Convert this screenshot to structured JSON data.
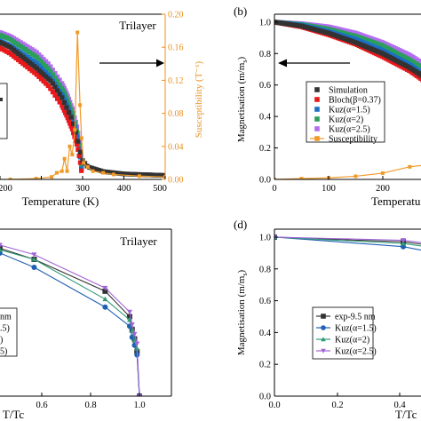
{
  "colors": {
    "simulation": "#333333",
    "bloch": "#e8181b",
    "kuz15": "#1c6fc7",
    "kuz2": "#2aa05a",
    "kuz25": "#b36ef0",
    "susc": "#f09a2a",
    "exp": "#333333",
    "kuz15_d": "#1f5fb4",
    "kuz2_d": "#2e9b74",
    "kuz25_d": "#a264d8"
  },
  "chart_data": [
    {
      "panel": "a",
      "type": "scatter",
      "annotation": "Trilayer",
      "xlabel": "Temperature (K)",
      "ylabel_right": "Susceptibility (T⁻¹)",
      "x_ticks": [
        "200",
        "300",
        "400",
        "500"
      ],
      "right_ticks": [
        "0.00",
        "0.04",
        "0.08",
        "0.12",
        "0.16",
        "0.20"
      ],
      "xlim": [
        100,
        500
      ],
      "ylim": [
        0,
        1.05
      ],
      "y2lim": [
        0,
        0.2
      ],
      "series": [
        {
          "key": "kuz25",
          "x": [
            100,
            150,
            200,
            250,
            275,
            300,
            310,
            320,
            330,
            335,
            338
          ],
          "y": [
            1.0,
            0.97,
            0.91,
            0.81,
            0.73,
            0.61,
            0.54,
            0.45,
            0.32,
            0.2,
            0.08
          ]
        },
        {
          "key": "kuz2",
          "x": [
            100,
            150,
            200,
            250,
            275,
            300,
            310,
            320,
            330,
            335,
            338
          ],
          "y": [
            1.0,
            0.96,
            0.89,
            0.78,
            0.7,
            0.58,
            0.51,
            0.42,
            0.29,
            0.18,
            0.07
          ]
        },
        {
          "key": "kuz15",
          "x": [
            100,
            150,
            200,
            250,
            275,
            300,
            310,
            320,
            330,
            335,
            338
          ],
          "y": [
            0.98,
            0.93,
            0.85,
            0.74,
            0.66,
            0.54,
            0.47,
            0.38,
            0.26,
            0.16,
            0.06
          ]
        },
        {
          "key": "bloch",
          "x": [
            100,
            150,
            200,
            250,
            275,
            300,
            310,
            320,
            330,
            335,
            338
          ],
          "y": [
            0.96,
            0.89,
            0.8,
            0.67,
            0.59,
            0.47,
            0.4,
            0.32,
            0.21,
            0.12,
            0.05
          ]
        },
        {
          "key": "simulation",
          "x": [
            100,
            150,
            200,
            250,
            280,
            300,
            320,
            330,
            335,
            340,
            350,
            380,
            420,
            460,
            500
          ],
          "y": [
            0.97,
            0.92,
            0.84,
            0.71,
            0.62,
            0.52,
            0.38,
            0.26,
            0.18,
            0.12,
            0.08,
            0.05,
            0.035,
            0.03,
            0.025
          ]
        },
        {
          "key": "susc",
          "axis": "right",
          "x": [
            100,
            150,
            200,
            250,
            280,
            290,
            300,
            305,
            310,
            315,
            320,
            325,
            330,
            335,
            338,
            342,
            350,
            360,
            380,
            400,
            450,
            500
          ],
          "y": [
            0.0,
            0.0,
            0.0,
            0.001,
            0.003,
            0.008,
            0.01,
            0.025,
            0.01,
            0.04,
            0.03,
            0.06,
            0.178,
            0.09,
            0.05,
            0.02,
            0.015,
            0.01,
            0.008,
            0.006,
            0.004,
            0.003
          ]
        }
      ]
    },
    {
      "panel": "b",
      "type": "scatter",
      "label": "(b)",
      "xlabel": "Temperatu",
      "ylabel": "Magnetisation (m/m",
      "ylabel_sub": "s",
      "ylabel_end": ")",
      "x_ticks": [
        "0",
        "100",
        "200"
      ],
      "y_ticks": [
        "0.0",
        "0.2",
        "0.4",
        "0.6",
        "0.8",
        "1.0"
      ],
      "xlim": [
        0,
        320
      ],
      "ylim": [
        0,
        1.05
      ],
      "legend": {
        "position": "right",
        "entries": [
          {
            "key": "simulation",
            "label": "Simulation"
          },
          {
            "key": "bloch",
            "label": "Bloch(β=0.37)"
          },
          {
            "key": "kuz15",
            "label": "Kuz(α=1.5)"
          },
          {
            "key": "kuz2",
            "label": "Kuz(α=2)"
          },
          {
            "key": "kuz25",
            "label": "Kuz(α=2.5)"
          },
          {
            "key": "susc",
            "label": "Susceptibility"
          }
        ]
      },
      "series": [
        {
          "key": "kuz25",
          "x": [
            0,
            50,
            100,
            150,
            200,
            250,
            300,
            320
          ],
          "y": [
            1.0,
            0.99,
            0.97,
            0.93,
            0.87,
            0.79,
            0.68,
            0.62
          ]
        },
        {
          "key": "kuz2",
          "x": [
            0,
            50,
            100,
            150,
            200,
            250,
            300,
            320
          ],
          "y": [
            1.0,
            0.985,
            0.955,
            0.91,
            0.85,
            0.76,
            0.65,
            0.59
          ]
        },
        {
          "key": "kuz15",
          "x": [
            0,
            50,
            100,
            150,
            200,
            250,
            300,
            320
          ],
          "y": [
            1.0,
            0.98,
            0.94,
            0.89,
            0.82,
            0.73,
            0.61,
            0.55
          ]
        },
        {
          "key": "bloch",
          "x": [
            0,
            50,
            100,
            150,
            200,
            250,
            300,
            320
          ],
          "y": [
            1.0,
            0.97,
            0.92,
            0.86,
            0.78,
            0.69,
            0.57,
            0.51
          ]
        },
        {
          "key": "simulation",
          "x": [
            0,
            50,
            100,
            150,
            200,
            250,
            300,
            320
          ],
          "y": [
            1.0,
            0.975,
            0.93,
            0.87,
            0.8,
            0.71,
            0.6,
            0.53
          ]
        },
        {
          "key": "susc",
          "x": [
            0,
            50,
            100,
            150,
            200,
            250,
            275,
            300,
            320
          ],
          "y": [
            0.0,
            0.005,
            0.01,
            0.02,
            0.04,
            0.08,
            0.09,
            0.075,
            0.085
          ]
        }
      ]
    },
    {
      "panel": "c",
      "type": "line",
      "annotation": "Trilayer",
      "xlabel": "T/Tc",
      "x_ticks": [
        "0.6",
        "0.8",
        "1.0"
      ],
      "xlim": [
        0.3,
        1.0
      ],
      "ylim": [
        0,
        1.05
      ],
      "legend": {
        "position": "left",
        "entries": [
          {
            "key": "exp",
            "label": "nm"
          },
          {
            "key": "kuz15_d",
            "label": ".5)"
          },
          {
            "key": "kuz2_d",
            "label": ")"
          },
          {
            "key": "kuz25_d",
            "label": "5)"
          }
        ]
      },
      "series": [
        {
          "key": "exp",
          "x": [
            0.3,
            0.43,
            0.57,
            0.86,
            0.96,
            0.97,
            0.98,
            0.99,
            1.0
          ],
          "y": [
            0.98,
            0.93,
            0.86,
            0.66,
            0.5,
            0.42,
            0.36,
            0.28,
            0.0
          ]
        },
        {
          "key": "kuz15_d",
          "x": [
            0.3,
            0.43,
            0.57,
            0.86,
            0.96,
            0.97,
            0.98,
            0.99,
            1.0
          ],
          "y": [
            0.97,
            0.9,
            0.81,
            0.56,
            0.44,
            0.37,
            0.32,
            0.26,
            0.0
          ]
        },
        {
          "key": "kuz2_d",
          "x": [
            0.3,
            0.43,
            0.57,
            0.86,
            0.96,
            0.97,
            0.98,
            0.99,
            1.0
          ],
          "y": [
            0.98,
            0.92,
            0.86,
            0.61,
            0.48,
            0.41,
            0.35,
            0.3,
            0.0
          ]
        },
        {
          "key": "kuz25_d",
          "x": [
            0.3,
            0.43,
            0.57,
            0.86,
            0.96,
            0.97,
            0.98,
            0.99,
            1.0
          ],
          "y": [
            0.99,
            0.95,
            0.89,
            0.68,
            0.53,
            0.45,
            0.39,
            0.33,
            0.0
          ]
        }
      ]
    },
    {
      "panel": "d",
      "type": "line",
      "label": "(d)",
      "xlabel": "T/Tc",
      "ylabel": "Magnetisation (m/m",
      "ylabel_sub": "s",
      "ylabel_end": ")",
      "x_ticks": [
        "0.0",
        "0.2",
        "0.4"
      ],
      "y_ticks": [
        "0.0",
        "0.2",
        "0.4",
        "0.6",
        "0.8",
        "1.0"
      ],
      "xlim": [
        0,
        0.47
      ],
      "ylim": [
        0,
        1.05
      ],
      "legend": {
        "position": "left",
        "entries": [
          {
            "key": "exp",
            "label": "exp-9.5 nm"
          },
          {
            "key": "kuz15_d",
            "label": "Kuz(α=1.5)"
          },
          {
            "key": "kuz2_d",
            "label": "Kuz(α=2)"
          },
          {
            "key": "kuz25_d",
            "label": "Kuz(α=2.5)"
          }
        ]
      },
      "series": [
        {
          "key": "exp",
          "x": [
            0,
            0.29,
            0.57
          ],
          "y": [
            1.0,
            0.97,
            0.87
          ]
        },
        {
          "key": "kuz15_d",
          "x": [
            0,
            0.29,
            0.57
          ],
          "y": [
            1.0,
            0.94,
            0.79
          ]
        },
        {
          "key": "kuz2_d",
          "x": [
            0,
            0.29,
            0.57
          ],
          "y": [
            1.0,
            0.96,
            0.85
          ]
        },
        {
          "key": "kuz25_d",
          "x": [
            0,
            0.29,
            0.57
          ],
          "y": [
            1.0,
            0.98,
            0.88
          ]
        }
      ]
    }
  ]
}
